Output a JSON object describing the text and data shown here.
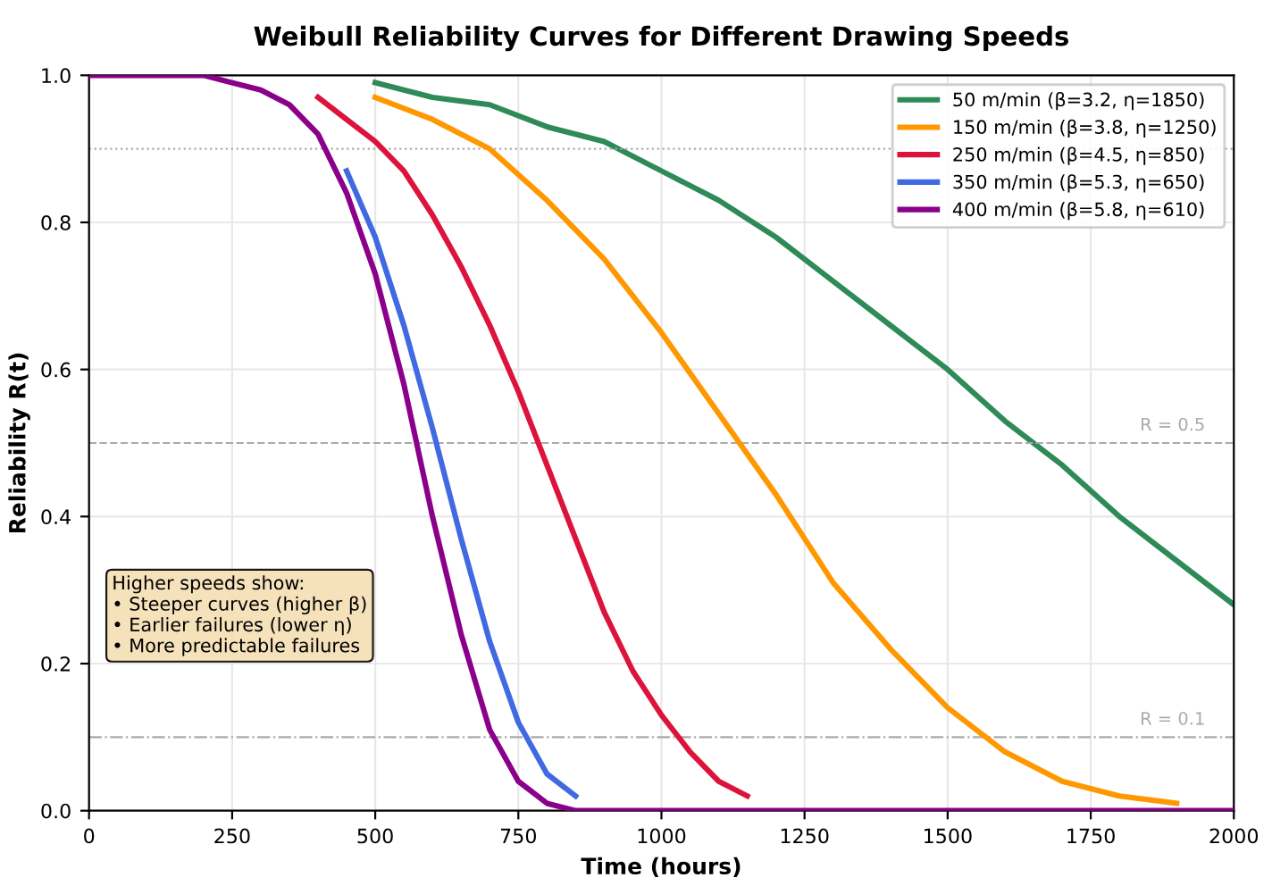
{
  "chart_data": {
    "type": "line",
    "title": "Weibull Reliability Curves for Different Drawing Speeds",
    "xlabel": "Time (hours)",
    "ylabel": "Reliability R(t)",
    "xlim": [
      0,
      2000
    ],
    "ylim": [
      0,
      1
    ],
    "xticks": [
      0,
      250,
      500,
      750,
      1000,
      1250,
      1500,
      1750,
      2000
    ],
    "yticks": [
      {
        "value": 0,
        "label": "0.0"
      },
      {
        "value": 0.2,
        "label": "0.2"
      },
      {
        "value": 0.4,
        "label": "0.4"
      },
      {
        "value": 0.6,
        "label": "0.6"
      },
      {
        "value": 0.8,
        "label": "0.8"
      },
      {
        "value": 1,
        "label": "1.0"
      }
    ],
    "grid": true,
    "legend": "top right",
    "marker": "none",
    "line_style": "solid",
    "series": [
      {
        "name": "50 m/min (β=3.2, η=1850)",
        "color": "#2e8b57",
        "x": [
          500,
          600,
          700,
          800,
          900,
          1000,
          1100,
          1200,
          1300,
          1400,
          1500,
          1600,
          1700,
          1800,
          1900,
          2000
        ],
        "values": [
          0.99,
          0.97,
          0.96,
          0.93,
          0.91,
          0.87,
          0.83,
          0.78,
          0.72,
          0.66,
          0.6,
          0.53,
          0.47,
          0.4,
          0.34,
          0.28
        ]
      },
      {
        "name": "150 m/min (β=3.8, η=1250)",
        "color": "#ff9800",
        "x": [
          500,
          600,
          700,
          800,
          900,
          1000,
          1100,
          1200,
          1300,
          1400,
          1500,
          1600,
          1700,
          1800,
          1900
        ],
        "values": [
          0.97,
          0.94,
          0.9,
          0.83,
          0.75,
          0.65,
          0.54,
          0.43,
          0.31,
          0.22,
          0.14,
          0.08,
          0.04,
          0.02,
          0.01
        ]
      },
      {
        "name": "250 m/min (β=4.5, η=850)",
        "color": "#dc143c",
        "x": [
          400,
          450,
          500,
          550,
          600,
          650,
          700,
          750,
          800,
          850,
          900,
          950,
          1000,
          1050,
          1100,
          1150
        ],
        "values": [
          0.97,
          0.94,
          0.91,
          0.87,
          0.81,
          0.74,
          0.66,
          0.57,
          0.47,
          0.37,
          0.27,
          0.19,
          0.13,
          0.08,
          0.04,
          0.02
        ]
      },
      {
        "name": "350 m/min (β=5.3, η=650)",
        "color": "#4169e1",
        "x": [
          450,
          500,
          550,
          600,
          650,
          700,
          750,
          800,
          850
        ],
        "values": [
          0.87,
          0.78,
          0.66,
          0.52,
          0.37,
          0.23,
          0.12,
          0.05,
          0.02
        ]
      },
      {
        "name": "400 m/min (β=5.8, η=610)",
        "color": "#8b008b",
        "x": [
          0,
          100,
          200,
          300,
          350,
          400,
          450,
          500,
          550,
          600,
          650,
          700,
          750,
          800,
          850,
          900,
          2000
        ],
        "values": [
          1,
          1,
          1,
          0.98,
          0.96,
          0.92,
          0.84,
          0.73,
          0.58,
          0.4,
          0.24,
          0.11,
          0.04,
          0.01,
          0,
          0,
          0
        ]
      }
    ],
    "ref_lines": [
      {
        "axis": "y",
        "value": 0.9,
        "label": null,
        "color": "#aaaaaa",
        "line_style": "dotted"
      },
      {
        "axis": "y",
        "value": 0.5,
        "label": "R = 0.5",
        "color": "#aaaaaa",
        "line_style": "dashed"
      },
      {
        "axis": "y",
        "value": 0.1,
        "label": "R = 0.1",
        "color": "#aaaaaa",
        "line_style": "dashdot"
      }
    ],
    "annotations": [
      "Higher speeds show:\n• Steeper curves (higher β)\n• Earlier failures (lower η)\n• More predictable failures"
    ]
  }
}
